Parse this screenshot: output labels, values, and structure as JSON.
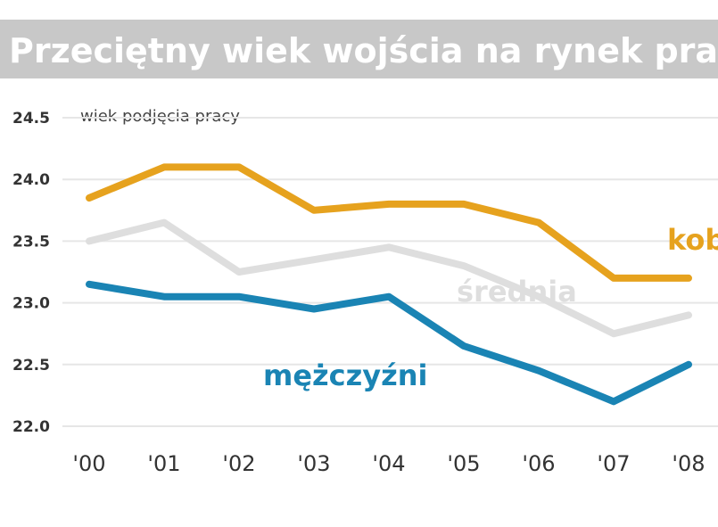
{
  "chart_data": {
    "type": "line",
    "title": "Przeciętny wiek wojścia na rynek pracy",
    "ylabel": "wiek podjęcia pracy",
    "xlabel": "",
    "categories": [
      "00",
      "01",
      "02",
      "03",
      "04",
      "05",
      "06",
      "07",
      "08"
    ],
    "ylim": [
      22.0,
      24.5
    ],
    "yticks": [
      "22.0",
      "22.5",
      "23.0",
      "23.5",
      "24.0",
      "24.5"
    ],
    "grid": true,
    "series": [
      {
        "name": "kobiety",
        "color": "#e6a21e",
        "values": [
          23.85,
          24.1,
          24.1,
          23.75,
          23.8,
          23.8,
          23.65,
          23.2,
          23.2
        ]
      },
      {
        "name": "średnia",
        "color": "#dedede",
        "values": [
          23.5,
          23.65,
          23.25,
          23.35,
          23.45,
          23.3,
          23.05,
          22.75,
          22.9
        ]
      },
      {
        "name": "mężczyźni",
        "color": "#1a84b4",
        "values": [
          23.15,
          23.05,
          23.05,
          22.95,
          23.05,
          22.65,
          22.45,
          22.2,
          22.5
        ]
      }
    ]
  }
}
